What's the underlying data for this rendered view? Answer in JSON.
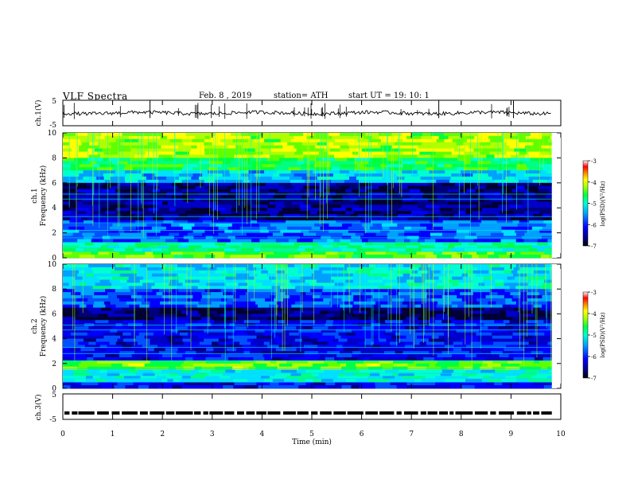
{
  "header": {
    "title": "VLF Spectra",
    "date": "Feb. 8 , 2019",
    "station": "station= ATH",
    "start": "start UT = 19: 10: 1"
  },
  "chart_data": [
    {
      "type": "line",
      "panel": "ch1-waveform",
      "ylabel": "ch.1(V)",
      "yticks": [
        "5",
        "-5"
      ],
      "ylim": [
        -5,
        5
      ],
      "xlim": [
        0,
        10
      ],
      "data_extent_min": 9.82,
      "baseline_v": 0.0
    },
    {
      "type": "heatmap",
      "panel": "ch1-spectrogram",
      "ylabel_channel": "ch.1",
      "ylabel": "Frequency (kHz)",
      "yticks": [
        "0",
        "2",
        "4",
        "6",
        "8",
        "10"
      ],
      "ylim": [
        0,
        10
      ],
      "xlim": [
        0,
        10
      ],
      "data_extent_min": 9.82,
      "colorbar": {
        "label": "log(PSD)(V²/Hz)",
        "ticks": [
          "-3",
          "-4",
          "-5",
          "-6",
          "-7"
        ],
        "range": [
          -7,
          -3
        ]
      },
      "colors": [
        "#00007a",
        "#0000ff",
        "#00a0ff",
        "#00ffd0",
        "#00ff40",
        "#b0ff00",
        "#ffff00",
        "#ff8000",
        "#ff0000",
        "#ffffff"
      ]
    },
    {
      "type": "heatmap",
      "panel": "ch2-spectrogram",
      "ylabel_channel": "ch.2",
      "ylabel": "Frequency (kHz)",
      "yticks": [
        "0",
        "2",
        "4",
        "6",
        "8",
        "10"
      ],
      "ylim": [
        0,
        10
      ],
      "xlim": [
        0,
        10
      ],
      "data_extent_min": 9.82,
      "colorbar": {
        "label": "log(PSD)(V²/Hz)",
        "ticks": [
          "-3",
          "-4",
          "-5",
          "-6",
          "-7"
        ],
        "range": [
          -7,
          -3
        ]
      }
    },
    {
      "type": "line",
      "panel": "ch3-waveform",
      "ylabel": "ch.3(V)",
      "yticks": [
        "5",
        "-5"
      ],
      "ylim": [
        -5,
        5
      ],
      "xlim": [
        0,
        10
      ],
      "data_extent_min": 9.82,
      "level_v": -2.5,
      "xlabel": "Time (min)",
      "xticks": [
        "0",
        "1",
        "2",
        "3",
        "4",
        "5",
        "6",
        "7",
        "8",
        "9",
        "10"
      ]
    }
  ]
}
